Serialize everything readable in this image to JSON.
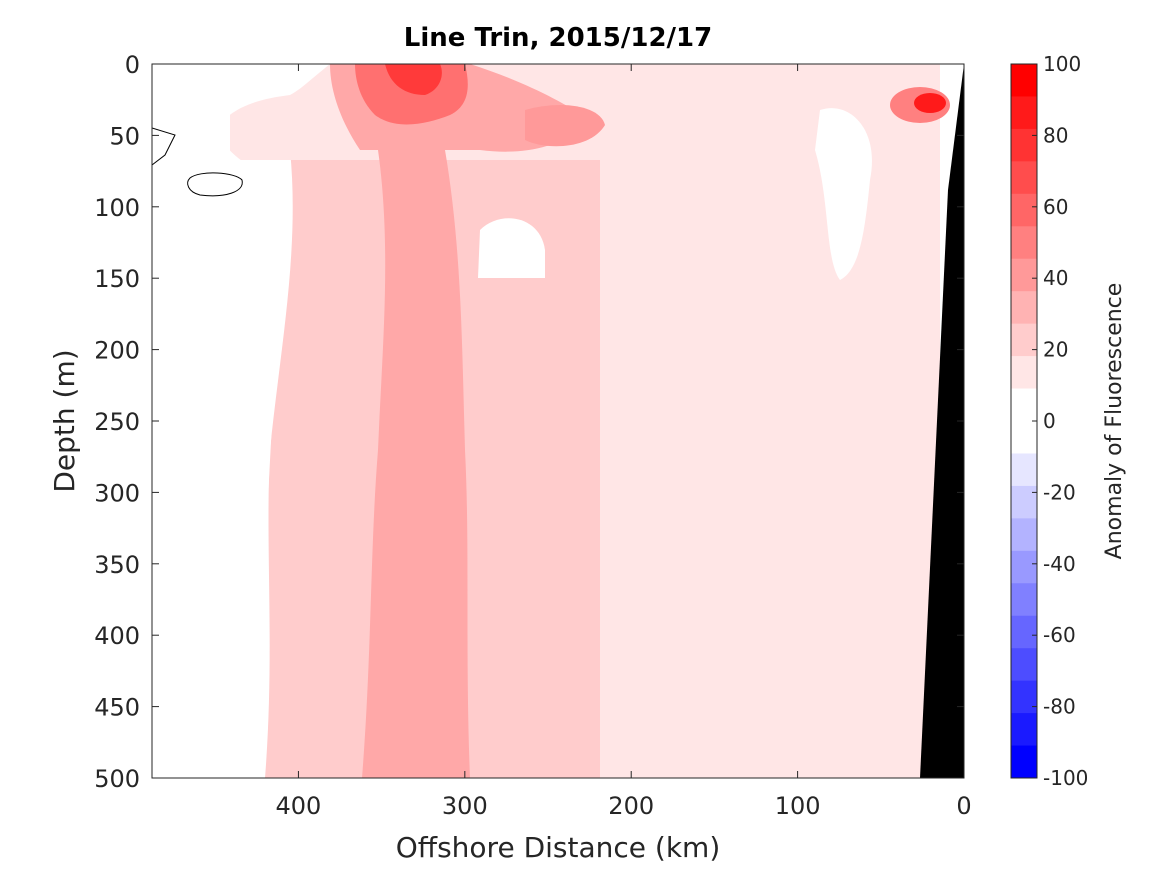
{
  "chart_data": {
    "type": "filled-contour",
    "title": "Line Trin, 2015/12/17",
    "xlabel": "Offshore Distance (km)",
    "ylabel": "Depth (m)",
    "colorbar_label": "Anomaly of Fluorescence",
    "xlim": [
      488,
      0
    ],
    "x_reversed": true,
    "ylim": [
      0,
      500
    ],
    "y_reversed": true,
    "x_ticks": [
      400,
      300,
      200,
      100,
      0
    ],
    "y_ticks": [
      0,
      50,
      100,
      150,
      200,
      250,
      300,
      350,
      400,
      450,
      500
    ],
    "colorbar_ticks": [
      100,
      80,
      60,
      40,
      20,
      0,
      -20,
      -40,
      -60,
      -80,
      -100
    ],
    "colorbar_range": [
      -100,
      100
    ],
    "colorbar_colors": [
      "#ff0000",
      "#ff1a1a",
      "#ff3333",
      "#ff4d4d",
      "#ff6666",
      "#ff8080",
      "#ff9999",
      "#ffb3b3",
      "#ffcccc",
      "#ffe6e6",
      "#ffffff",
      "#ffffff",
      "#e6e6ff",
      "#ccccff",
      "#b3b3ff",
      "#9999ff",
      "#8080ff",
      "#6666ff",
      "#4d4dff",
      "#3333ff",
      "#1a1aff",
      "#0000ff"
    ],
    "bands": [
      {
        "anomaly_range": [
          0,
          10
        ],
        "x_km": [
          488,
          380
        ],
        "depth_m": [
          0,
          500
        ]
      },
      {
        "anomaly_range": [
          10,
          20
        ],
        "x_km": [
          380,
          210
        ],
        "depth_m": [
          60,
          500
        ]
      },
      {
        "anomaly_range": [
          30,
          40
        ],
        "x_km": [
          360,
          310
        ],
        "depth_m": [
          0,
          500
        ]
      },
      {
        "anomaly_range": [
          10,
          20
        ],
        "x_km": [
          210,
          30
        ],
        "depth_m": [
          0,
          500
        ]
      },
      {
        "anomaly_range": [
          30,
          40
        ],
        "x_km": [
          380,
          190
        ],
        "depth_m": [
          0,
          70
        ]
      },
      {
        "anomaly_range": [
          60,
          70
        ],
        "x_km": [
          360,
          300
        ],
        "depth_m": [
          0,
          60
        ]
      },
      {
        "anomaly_range": [
          90,
          100
        ],
        "x_km": [
          345,
          320
        ],
        "depth_m": [
          0,
          20
        ]
      },
      {
        "anomaly_range": [
          90,
          100
        ],
        "x_km": [
          25,
          10
        ],
        "depth_m": [
          20,
          45
        ]
      }
    ],
    "bathymetry": {
      "x_km": [
        25,
        10,
        1
      ],
      "depth_m": [
        500,
        90,
        0
      ]
    }
  }
}
